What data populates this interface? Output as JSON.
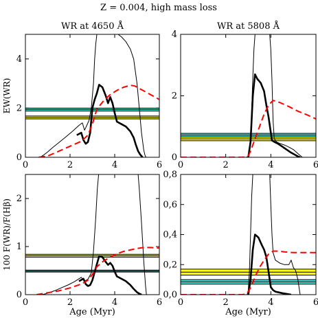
{
  "title": "Z = 0.004, high mass loss",
  "chart_data": [
    {
      "type": "line",
      "title": "WR at 4650 Å",
      "xlabel": "",
      "ylabel": "EW(WR)",
      "xlim": [
        0,
        6
      ],
      "ylim": [
        0,
        5
      ],
      "xticks": [
        "0",
        "2",
        "4",
        "6"
      ],
      "yticks": [
        {
          "v": 0,
          "t": "0"
        },
        {
          "v": 2,
          "t": "2"
        },
        {
          "v": 4,
          "t": "4"
        }
      ],
      "bands": [
        {
          "color": "#40e0d0",
          "range": [
            1.88,
            2.0
          ],
          "lines": [
            1.88,
            1.94,
            2.0
          ]
        },
        {
          "color": "#ffff00",
          "range": [
            1.56,
            1.68
          ],
          "lines": [
            1.56,
            1.62,
            1.68
          ]
        }
      ],
      "series": [
        {
          "style": "thin",
          "x": [
            0.65,
            0.8,
            1.0,
            1.2,
            1.5,
            1.8,
            2.1,
            2.4,
            2.55,
            2.65,
            2.75,
            2.85,
            2.95,
            3.05,
            3.1,
            3.15,
            3.2
          ],
          "y": [
            0,
            0.08,
            0.22,
            0.38,
            0.6,
            0.82,
            1.05,
            1.3,
            1.4,
            1.1,
            1.3,
            1.5,
            2.0,
            3.0,
            4.0,
            4.6,
            5.0
          ]
        },
        {
          "style": "thin",
          "x": [
            4.15,
            4.3,
            4.5,
            4.7,
            4.85,
            5.0,
            5.1,
            5.2,
            5.3,
            5.35,
            5.4
          ],
          "y": [
            5.0,
            4.9,
            4.7,
            4.4,
            4.0,
            3.0,
            2.0,
            1.0,
            0.3,
            0.1,
            0
          ]
        },
        {
          "style": "thick",
          "x": [
            2.3,
            2.5,
            2.6,
            2.7,
            2.8,
            2.9,
            3.0,
            3.1,
            3.2,
            3.3,
            3.45,
            3.6,
            3.7,
            3.8,
            3.9,
            4.0,
            4.1,
            4.3,
            4.5,
            4.7,
            4.85,
            4.95,
            5.05,
            5.15,
            5.25
          ],
          "y": [
            0.9,
            1.0,
            0.7,
            0.55,
            0.62,
            1.0,
            2.0,
            2.35,
            2.6,
            2.95,
            2.85,
            2.5,
            2.2,
            2.45,
            2.2,
            1.8,
            1.45,
            1.35,
            1.25,
            1.05,
            0.8,
            0.5,
            0.25,
            0.1,
            0
          ]
        },
        {
          "style": "dash",
          "x": [
            0.6,
            1.0,
            1.5,
            2.0,
            2.5,
            2.8,
            3.0,
            3.2,
            3.5,
            3.8,
            4.1,
            4.4,
            4.7,
            4.9,
            5.1,
            5.4,
            5.7,
            6.0
          ],
          "y": [
            0,
            0.05,
            0.25,
            0.45,
            0.65,
            0.9,
            1.35,
            1.95,
            2.3,
            2.55,
            2.72,
            2.85,
            2.93,
            2.9,
            2.8,
            2.65,
            2.5,
            2.35
          ]
        }
      ]
    },
    {
      "type": "line",
      "title": "WR at 5808 Å",
      "xlabel": "",
      "ylabel": "",
      "xlim": [
        0,
        6
      ],
      "ylim": [
        0,
        4
      ],
      "xticks": [
        "0",
        "2",
        "4",
        "6"
      ],
      "yticks": [
        {
          "v": 0,
          "t": "0"
        },
        {
          "v": 2,
          "t": "2"
        },
        {
          "v": 4,
          "t": "4"
        }
      ],
      "bands": [
        {
          "color": "#40e0d0",
          "range": [
            0.66,
            0.78
          ],
          "lines": [
            0.66,
            0.72,
            0.78
          ]
        },
        {
          "color": "#ffff00",
          "range": [
            0.54,
            0.66
          ],
          "lines": [
            0.54,
            0.6,
            0.66
          ]
        }
      ],
      "series": [
        {
          "style": "thin",
          "x": [
            2.9,
            3.0,
            3.05,
            3.1,
            3.15,
            3.2,
            3.25,
            3.3
          ],
          "y": [
            0,
            0.02,
            0.1,
            0.6,
            1.5,
            2.6,
            3.5,
            4.0
          ]
        },
        {
          "style": "thin",
          "x": [
            3.95,
            4.0,
            4.05,
            4.1,
            4.15,
            4.25,
            4.4,
            4.6,
            4.8,
            5.0,
            5.2,
            5.4
          ],
          "y": [
            4.0,
            3.5,
            2.5,
            1.2,
            0.6,
            0.5,
            0.45,
            0.4,
            0.33,
            0.25,
            0.12,
            0
          ]
        },
        {
          "style": "thick",
          "x": [
            3.0,
            3.1,
            3.2,
            3.3,
            3.4,
            3.55,
            3.7,
            3.8,
            3.9,
            4.0,
            4.05,
            4.15,
            4.3,
            4.5,
            4.7,
            4.9,
            5.1,
            5.2,
            5.3
          ],
          "y": [
            0,
            0.5,
            2.0,
            2.7,
            2.55,
            2.42,
            2.15,
            1.7,
            1.3,
            0.8,
            0.55,
            0.5,
            0.45,
            0.35,
            0.25,
            0.15,
            0.07,
            0.03,
            0
          ]
        },
        {
          "style": "dash",
          "x": [
            0,
            2.7,
            2.9,
            3.0,
            3.1,
            3.3,
            3.5,
            3.7,
            3.9,
            4.1,
            4.4,
            4.8,
            5.2,
            5.6,
            6.0
          ],
          "y": [
            0,
            0,
            0.01,
            0.05,
            0.2,
            0.6,
            1.0,
            1.4,
            1.7,
            1.85,
            1.78,
            1.65,
            1.5,
            1.38,
            1.25
          ]
        }
      ]
    },
    {
      "type": "line",
      "title": "",
      "xlabel": "Age (Myr)",
      "ylabel": "100 F(WR)/F(Hβ)",
      "xlim": [
        0,
        6
      ],
      "ylim": [
        0,
        2.5
      ],
      "xticks": [
        "0",
        "2",
        "4",
        "6"
      ],
      "yticks": [
        {
          "v": 0,
          "t": "0"
        },
        {
          "v": 1,
          "t": "1"
        },
        {
          "v": 2,
          "t": "2"
        }
      ],
      "bands": [
        {
          "color": "#ffff00",
          "range": [
            0.78,
            0.84
          ],
          "lines": [
            0.78,
            0.81,
            0.84
          ]
        },
        {
          "color": "#40e0d0",
          "range": [
            0.47,
            0.51
          ],
          "lines": [
            0.47,
            0.49,
            0.51
          ]
        }
      ],
      "series": [
        {
          "style": "thin",
          "x": [
            0.75,
            1.0,
            1.3,
            1.6,
            1.9,
            2.2,
            2.5,
            2.65,
            2.8,
            2.95,
            3.05,
            3.15,
            3.22,
            3.28
          ],
          "y": [
            0,
            0.03,
            0.08,
            0.14,
            0.2,
            0.27,
            0.36,
            0.28,
            0.32,
            0.45,
            0.9,
            1.6,
            2.2,
            2.5
          ]
        },
        {
          "style": "thin",
          "x": [
            5.05,
            5.1,
            5.2,
            5.3,
            5.38,
            5.42
          ],
          "y": [
            2.5,
            2.2,
            1.5,
            0.7,
            0.2,
            0
          ]
        },
        {
          "style": "thick",
          "x": [
            2.4,
            2.6,
            2.7,
            2.8,
            2.9,
            3.0,
            3.15,
            3.3,
            3.45,
            3.6,
            3.7,
            3.8,
            3.9,
            4.0,
            4.1,
            4.3,
            4.5,
            4.7,
            4.85,
            5.0,
            5.1,
            5.2
          ],
          "y": [
            0.28,
            0.33,
            0.22,
            0.18,
            0.2,
            0.3,
            0.55,
            0.8,
            0.78,
            0.68,
            0.62,
            0.66,
            0.6,
            0.48,
            0.38,
            0.33,
            0.28,
            0.2,
            0.12,
            0.05,
            0.02,
            0
          ]
        },
        {
          "style": "dash",
          "x": [
            0.5,
            1.0,
            1.5,
            2.0,
            2.5,
            2.8,
            3.0,
            3.2,
            3.5,
            3.8,
            4.1,
            4.4,
            4.7,
            5.0,
            5.3,
            5.6,
            6.0
          ],
          "y": [
            0,
            0.04,
            0.08,
            0.14,
            0.22,
            0.3,
            0.42,
            0.58,
            0.7,
            0.78,
            0.85,
            0.9,
            0.93,
            0.96,
            0.98,
            0.98,
            0.97
          ]
        }
      ]
    },
    {
      "type": "line",
      "title": "",
      "xlabel": "Age (Myr)",
      "ylabel": "",
      "xlim": [
        0,
        6
      ],
      "ylim": [
        0,
        0.8
      ],
      "xticks": [
        "0",
        "2",
        "4",
        "6"
      ],
      "yticks": [
        {
          "v": 0,
          "t": "0,0"
        },
        {
          "v": 0.2,
          "t": "0,2"
        },
        {
          "v": 0.4,
          "t": "0,4"
        },
        {
          "v": 0.6,
          "t": "0,6"
        },
        {
          "v": 0.8,
          "t": "0,8"
        }
      ],
      "bands": [
        {
          "color": "#ffff00",
          "range": [
            0.13,
            0.17
          ],
          "lines": [
            0.13,
            0.15,
            0.17
          ]
        },
        {
          "color": "#40e0d0",
          "range": [
            0.07,
            0.1
          ],
          "lines": [
            0.07,
            0.085,
            0.1
          ]
        }
      ],
      "series": [
        {
          "style": "thin",
          "x": [
            2.95,
            3.0,
            3.05,
            3.1,
            3.15,
            3.2
          ],
          "y": [
            0,
            0.03,
            0.15,
            0.4,
            0.65,
            0.8
          ]
        },
        {
          "style": "thin",
          "x": [
            3.95,
            4.0,
            4.05,
            4.1,
            4.2,
            4.4,
            4.6,
            4.8,
            4.9,
            5.0,
            5.1,
            5.2,
            5.3
          ],
          "y": [
            0.8,
            0.6,
            0.4,
            0.28,
            0.23,
            0.21,
            0.2,
            0.2,
            0.23,
            0.18,
            0.16,
            0.1,
            0
          ]
        },
        {
          "style": "thick",
          "x": [
            3.0,
            3.1,
            3.2,
            3.3,
            3.45,
            3.6,
            3.7,
            3.8,
            3.9,
            4.0,
            4.1,
            4.2,
            4.35,
            4.5,
            4.7,
            4.9
          ],
          "y": [
            0,
            0.1,
            0.3,
            0.4,
            0.38,
            0.33,
            0.3,
            0.25,
            0.15,
            0.05,
            0.03,
            0.02,
            0.015,
            0.01,
            0.005,
            0
          ]
        },
        {
          "style": "dash",
          "x": [
            0,
            2.75,
            2.9,
            3.0,
            3.15,
            3.3,
            3.5,
            3.7,
            3.9,
            4.1,
            4.3,
            4.6,
            5.0,
            5.5,
            6.0
          ],
          "y": [
            0,
            0,
            0.005,
            0.02,
            0.06,
            0.12,
            0.18,
            0.23,
            0.27,
            0.29,
            0.29,
            0.285,
            0.28,
            0.28,
            0.28
          ]
        }
      ]
    }
  ]
}
